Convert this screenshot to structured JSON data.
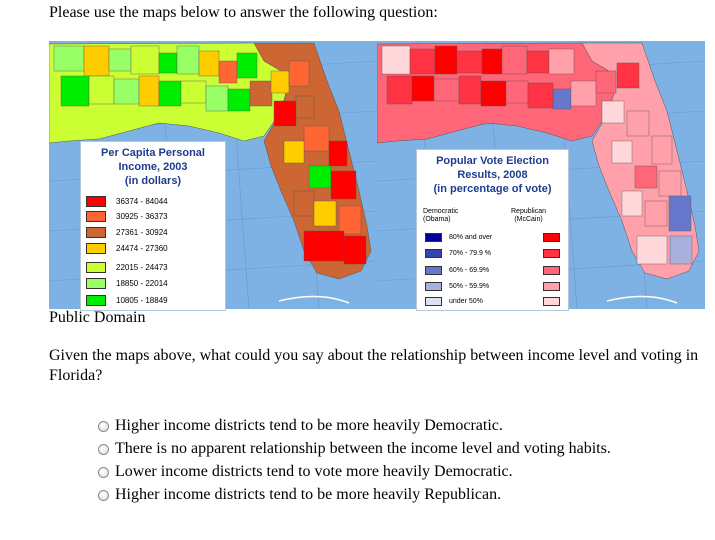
{
  "prompt": "Please use the maps below to answer the following question:",
  "income_map": {
    "title_lines": [
      "Per Capita Personal",
      "Income, 2003",
      "(in dollars)"
    ],
    "legend": [
      {
        "range": "36374 - 84044",
        "color": "#ff0000"
      },
      {
        "range": "30925 - 36373",
        "color": "#ff6633"
      },
      {
        "range": "27361 - 30924",
        "color": "#cc6633"
      },
      {
        "range": "24474 - 27360",
        "color": "#ffcc00"
      },
      {
        "range": "22015 - 24473",
        "color": "#ccff33"
      },
      {
        "range": "18850 - 22014",
        "color": "#99ff66"
      },
      {
        "range": "10805 - 18849",
        "color": "#00ee00"
      }
    ]
  },
  "vote_map": {
    "title_lines": [
      "Popular Vote Election",
      "Results, 2008",
      "(in percentage of vote)"
    ],
    "democratic_label": [
      "Democratic",
      "(Obama)"
    ],
    "republican_label": [
      "Republican",
      "(McCain)"
    ],
    "legend": [
      {
        "range": "80% and over",
        "dem_color": "#000099",
        "rep_color": "#ff0000"
      },
      {
        "range": "70% - 79.9 %",
        "dem_color": "#3344aa",
        "rep_color": "#ff3344"
      },
      {
        "range": "60% - 69.9%",
        "dem_color": "#6677cc",
        "rep_color": "#ff6677"
      },
      {
        "range": "50% - 59.9%",
        "dem_color": "#aab0dd",
        "rep_color": "#ffa0aa"
      },
      {
        "range": "under 50%",
        "dem_color": "#dde0f2",
        "rep_color": "#ffd8dc"
      }
    ]
  },
  "caption": "Public Domain",
  "question": "Given the maps above, what could you say about the relationship between income level and voting in Florida?",
  "options": [
    "Higher income districts tend to be more heavily Democratic.",
    "There is no apparent relationship between the income level and voting habits.",
    "Lower income districts tend to vote more heavily Democratic.",
    "Higher income districts tend to be more heavily Republican."
  ]
}
